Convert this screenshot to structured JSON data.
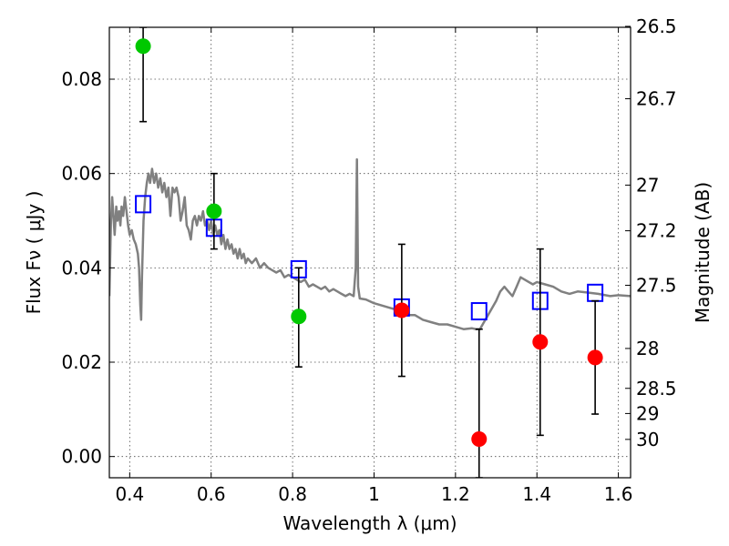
{
  "chart_data": {
    "type": "scatter",
    "xlabel": "Wavelength  λ (μm)",
    "ylabel": "Flux  Fν  ( μJy )",
    "ylabel_right": "Magnitude (AB)",
    "xlim": [
      0.35,
      1.63
    ],
    "ylim": [
      -0.0045,
      0.091
    ],
    "grid": true,
    "x_ticks": [
      0.4,
      0.6,
      0.8,
      1.0,
      1.2,
      1.4,
      1.6
    ],
    "x_tick_labels": [
      "0.4",
      "0.6",
      "0.8",
      "1",
      "1.2",
      "1.4",
      "1.6"
    ],
    "y_ticks": [
      0.0,
      0.02,
      0.04,
      0.06,
      0.08
    ],
    "y_tick_labels": [
      "0.00",
      "0.02",
      "0.04",
      "0.06",
      "0.08"
    ],
    "right_ticks": [
      {
        "label": "26.5",
        "mag": 26.5
      },
      {
        "label": "26.7",
        "mag": 26.7
      },
      {
        "label": "27",
        "mag": 27.0
      },
      {
        "label": "27.2",
        "mag": 27.2
      },
      {
        "label": "27.5",
        "mag": 27.5
      },
      {
        "label": "28",
        "mag": 28.0
      },
      {
        "label": "28.5",
        "mag": 28.5
      },
      {
        "label": "29",
        "mag": 29.0
      },
      {
        "label": "30",
        "mag": 30.0
      }
    ],
    "series": [
      {
        "kind": "line",
        "color": "#808080",
        "points": [
          [
            0.35,
            0.034
          ],
          [
            0.354,
            0.05
          ],
          [
            0.357,
            0.055
          ],
          [
            0.36,
            0.051
          ],
          [
            0.363,
            0.047
          ],
          [
            0.367,
            0.053
          ],
          [
            0.37,
            0.05
          ],
          [
            0.374,
            0.052
          ],
          [
            0.377,
            0.049
          ],
          [
            0.38,
            0.053
          ],
          [
            0.384,
            0.051
          ],
          [
            0.388,
            0.055
          ],
          [
            0.392,
            0.052
          ],
          [
            0.396,
            0.049
          ],
          [
            0.4,
            0.047
          ],
          [
            0.405,
            0.048
          ],
          [
            0.41,
            0.046
          ],
          [
            0.415,
            0.045
          ],
          [
            0.42,
            0.043
          ],
          [
            0.423,
            0.04
          ],
          [
            0.426,
            0.032
          ],
          [
            0.428,
            0.029
          ],
          [
            0.43,
            0.038
          ],
          [
            0.434,
            0.05
          ],
          [
            0.438,
            0.055
          ],
          [
            0.442,
            0.058
          ],
          [
            0.446,
            0.06
          ],
          [
            0.45,
            0.058
          ],
          [
            0.455,
            0.061
          ],
          [
            0.46,
            0.058
          ],
          [
            0.465,
            0.06
          ],
          [
            0.47,
            0.057
          ],
          [
            0.475,
            0.059
          ],
          [
            0.48,
            0.056
          ],
          [
            0.485,
            0.058
          ],
          [
            0.49,
            0.055
          ],
          [
            0.495,
            0.057
          ],
          [
            0.5,
            0.051
          ],
          [
            0.505,
            0.057
          ],
          [
            0.51,
            0.056
          ],
          [
            0.515,
            0.057
          ],
          [
            0.52,
            0.055
          ],
          [
            0.525,
            0.05
          ],
          [
            0.53,
            0.052
          ],
          [
            0.535,
            0.055
          ],
          [
            0.54,
            0.049
          ],
          [
            0.545,
            0.048
          ],
          [
            0.55,
            0.046
          ],
          [
            0.555,
            0.05
          ],
          [
            0.56,
            0.051
          ],
          [
            0.565,
            0.049
          ],
          [
            0.57,
            0.051
          ],
          [
            0.575,
            0.05
          ],
          [
            0.58,
            0.052
          ],
          [
            0.585,
            0.049
          ],
          [
            0.59,
            0.05
          ],
          [
            0.595,
            0.048
          ],
          [
            0.6,
            0.05
          ],
          [
            0.605,
            0.047
          ],
          [
            0.61,
            0.049
          ],
          [
            0.615,
            0.047
          ],
          [
            0.62,
            0.048
          ],
          [
            0.625,
            0.045
          ],
          [
            0.63,
            0.047
          ],
          [
            0.635,
            0.044
          ],
          [
            0.64,
            0.046
          ],
          [
            0.645,
            0.044
          ],
          [
            0.65,
            0.045
          ],
          [
            0.655,
            0.043
          ],
          [
            0.66,
            0.044
          ],
          [
            0.665,
            0.042
          ],
          [
            0.67,
            0.044
          ],
          [
            0.675,
            0.042
          ],
          [
            0.68,
            0.043
          ],
          [
            0.685,
            0.041
          ],
          [
            0.69,
            0.042
          ],
          [
            0.7,
            0.041
          ],
          [
            0.71,
            0.042
          ],
          [
            0.72,
            0.04
          ],
          [
            0.73,
            0.041
          ],
          [
            0.74,
            0.04
          ],
          [
            0.75,
            0.0395
          ],
          [
            0.76,
            0.039
          ],
          [
            0.77,
            0.0395
          ],
          [
            0.78,
            0.038
          ],
          [
            0.79,
            0.0385
          ],
          [
            0.8,
            0.038
          ],
          [
            0.81,
            0.0375
          ],
          [
            0.82,
            0.037
          ],
          [
            0.83,
            0.0375
          ],
          [
            0.84,
            0.036
          ],
          [
            0.85,
            0.0365
          ],
          [
            0.86,
            0.036
          ],
          [
            0.87,
            0.0355
          ],
          [
            0.88,
            0.036
          ],
          [
            0.89,
            0.035
          ],
          [
            0.9,
            0.0355
          ],
          [
            0.91,
            0.035
          ],
          [
            0.92,
            0.0345
          ],
          [
            0.93,
            0.034
          ],
          [
            0.94,
            0.0345
          ],
          [
            0.95,
            0.034
          ],
          [
            0.955,
            0.04
          ],
          [
            0.958,
            0.063
          ],
          [
            0.961,
            0.036
          ],
          [
            0.965,
            0.0335
          ],
          [
            0.98,
            0.0333
          ],
          [
            1.0,
            0.0325
          ],
          [
            1.02,
            0.032
          ],
          [
            1.04,
            0.0315
          ],
          [
            1.06,
            0.031
          ],
          [
            1.08,
            0.03
          ],
          [
            1.1,
            0.03
          ],
          [
            1.12,
            0.029
          ],
          [
            1.14,
            0.0285
          ],
          [
            1.16,
            0.028
          ],
          [
            1.18,
            0.028
          ],
          [
            1.2,
            0.0275
          ],
          [
            1.22,
            0.027
          ],
          [
            1.24,
            0.0272
          ],
          [
            1.25,
            0.027
          ],
          [
            1.26,
            0.027
          ],
          [
            1.27,
            0.0285
          ],
          [
            1.28,
            0.03
          ],
          [
            1.3,
            0.033
          ],
          [
            1.31,
            0.035
          ],
          [
            1.32,
            0.036
          ],
          [
            1.33,
            0.035
          ],
          [
            1.34,
            0.034
          ],
          [
            1.35,
            0.036
          ],
          [
            1.36,
            0.038
          ],
          [
            1.37,
            0.0375
          ],
          [
            1.38,
            0.037
          ],
          [
            1.39,
            0.0365
          ],
          [
            1.4,
            0.037
          ],
          [
            1.42,
            0.0365
          ],
          [
            1.44,
            0.036
          ],
          [
            1.46,
            0.035
          ],
          [
            1.48,
            0.0345
          ],
          [
            1.5,
            0.035
          ],
          [
            1.52,
            0.0348
          ],
          [
            1.55,
            0.0345
          ],
          [
            1.58,
            0.034
          ],
          [
            1.6,
            0.0342
          ],
          [
            1.63,
            0.034
          ]
        ]
      },
      {
        "kind": "squares",
        "color": "#0000ff",
        "points": [
          [
            0.433,
            0.0535
          ],
          [
            0.607,
            0.0485
          ],
          [
            0.815,
            0.0397
          ],
          [
            1.068,
            0.0316
          ],
          [
            1.258,
            0.0308
          ],
          [
            1.408,
            0.033
          ],
          [
            1.543,
            0.0347
          ]
        ]
      },
      {
        "kind": "dots",
        "color": "#00c800",
        "points": [
          {
            "x": 0.433,
            "y": 0.087,
            "ylo": 0.071,
            "yhi": 0.091
          },
          {
            "x": 0.607,
            "y": 0.052,
            "ylo": 0.044,
            "yhi": 0.06
          },
          {
            "x": 0.815,
            "y": 0.0297,
            "ylo": 0.019,
            "yhi": 0.04
          }
        ]
      },
      {
        "kind": "dots",
        "color": "#ff0000",
        "points": [
          {
            "x": 1.068,
            "y": 0.031,
            "ylo": 0.017,
            "yhi": 0.045
          },
          {
            "x": 1.258,
            "y": 0.0037,
            "ylo": -0.0045,
            "yhi": 0.027
          },
          {
            "x": 1.408,
            "y": 0.0243,
            "ylo": 0.0045,
            "yhi": 0.044
          },
          {
            "x": 1.543,
            "y": 0.021,
            "ylo": 0.009,
            "yhi": 0.033
          }
        ]
      }
    ]
  }
}
